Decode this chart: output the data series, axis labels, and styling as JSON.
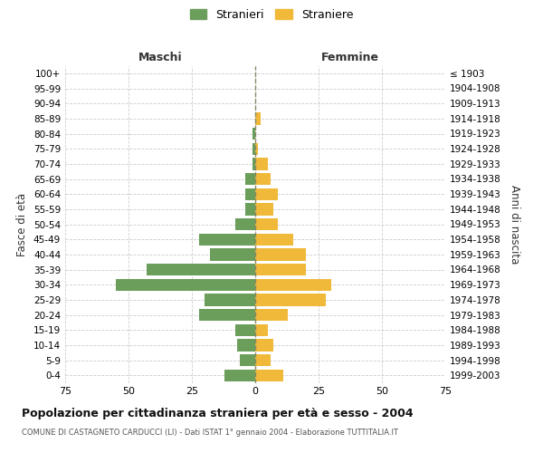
{
  "age_groups": [
    "0-4",
    "5-9",
    "10-14",
    "15-19",
    "20-24",
    "25-29",
    "30-34",
    "35-39",
    "40-44",
    "45-49",
    "50-54",
    "55-59",
    "60-64",
    "65-69",
    "70-74",
    "75-79",
    "80-84",
    "85-89",
    "90-94",
    "95-99",
    "100+"
  ],
  "birth_years": [
    "1999-2003",
    "1994-1998",
    "1989-1993",
    "1984-1988",
    "1979-1983",
    "1974-1978",
    "1969-1973",
    "1964-1968",
    "1959-1963",
    "1954-1958",
    "1949-1953",
    "1944-1948",
    "1939-1943",
    "1934-1938",
    "1929-1933",
    "1924-1928",
    "1919-1923",
    "1914-1918",
    "1909-1913",
    "1904-1908",
    "≤ 1903"
  ],
  "maschi": [
    12,
    6,
    7,
    8,
    22,
    20,
    55,
    43,
    18,
    22,
    8,
    4,
    4,
    4,
    1,
    1,
    1,
    0,
    0,
    0,
    0
  ],
  "femmine": [
    11,
    6,
    7,
    5,
    13,
    28,
    30,
    20,
    20,
    15,
    9,
    7,
    9,
    6,
    5,
    1,
    0,
    2,
    0,
    0,
    0
  ],
  "maschi_color": "#6a9e5a",
  "femmine_color": "#f0b93a",
  "background_color": "#ffffff",
  "grid_color": "#cccccc",
  "title": "Popolazione per cittadinanza straniera per età e sesso - 2004",
  "subtitle": "COMUNE DI CASTAGNETO CARDUCCI (LI) - Dati ISTAT 1° gennaio 2004 - Elaborazione TUTTITALIA.IT",
  "xlabel_left": "Maschi",
  "xlabel_right": "Femmine",
  "ylabel_left": "Fasce di età",
  "ylabel_right": "Anni di nascita",
  "legend_stranieri": "Stranieri",
  "legend_straniere": "Straniere",
  "xlim": 75,
  "bar_height": 0.8
}
